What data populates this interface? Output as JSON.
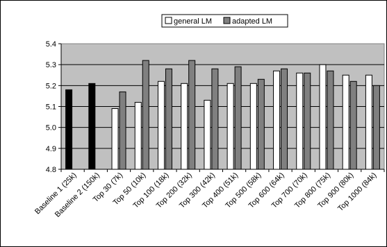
{
  "chart_data": {
    "type": "bar",
    "title": "",
    "xlabel": "",
    "ylabel": "",
    "ylim": [
      4.8,
      5.4
    ],
    "yticks": [
      "4.8",
      "4.9",
      "5.0",
      "5.1",
      "5.2",
      "5.3",
      "5.4"
    ],
    "grid": true,
    "legend_position": "top",
    "categories": [
      "Baseline 1 (25k)",
      "Baseline 2 (150k)",
      "Top 30 (7k)",
      "Top 50 (10k)",
      "Top 100 (18k)",
      "Top 200 (32k)",
      "Top 300 (42k)",
      "Top 400 (51k)",
      "Top 500 (58k)",
      "Top 600 (64k)",
      "Top 700 (70k)",
      "Top 800 (75k)",
      "Top 900 (80k)",
      "Top 1000 (84k)"
    ],
    "baseline_values": [
      5.18,
      5.21
    ],
    "baseline_color": "#000000",
    "series": [
      {
        "name": "general LM",
        "color": "#ffffff",
        "values": [
          null,
          null,
          5.09,
          5.12,
          5.22,
          5.21,
          5.13,
          5.21,
          5.21,
          5.27,
          5.26,
          5.3,
          5.25,
          5.25
        ]
      },
      {
        "name": "adapted LM",
        "color": "#808080",
        "values": [
          null,
          null,
          5.17,
          5.32,
          5.28,
          5.32,
          5.28,
          5.29,
          5.23,
          5.28,
          5.26,
          5.27,
          5.22,
          5.2
        ]
      }
    ],
    "plot_background": "#c0c0c0"
  }
}
